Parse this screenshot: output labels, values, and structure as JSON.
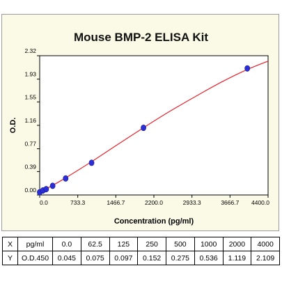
{
  "chart_data": {
    "type": "scatter",
    "title": "Mouse BMP-2 ELISA Kit",
    "xlabel": "Concentration (pg/ml)",
    "ylabel": "O.D.",
    "xlim": [
      0,
      4400
    ],
    "ylim": [
      0,
      2.32
    ],
    "x_ticks": [
      "0.0",
      "733.3",
      "1466.7",
      "2200.0",
      "2933.3",
      "3666.7",
      "4400.0"
    ],
    "x_tick_values": [
      0,
      733.3,
      1466.7,
      2200.0,
      2933.3,
      3666.7,
      4400.0
    ],
    "y_ticks": [
      "0.00",
      "0.39",
      "0.77",
      "1.16",
      "1.55",
      "1.93",
      "2.32"
    ],
    "y_tick_values": [
      0,
      0.39,
      0.77,
      1.16,
      1.55,
      1.93,
      2.32
    ],
    "points": [
      {
        "x": 0,
        "y": 0.045
      },
      {
        "x": 62.5,
        "y": 0.075
      },
      {
        "x": 125,
        "y": 0.097
      },
      {
        "x": 250,
        "y": 0.152
      },
      {
        "x": 500,
        "y": 0.275
      },
      {
        "x": 1000,
        "y": 0.536
      },
      {
        "x": 2000,
        "y": 1.119
      },
      {
        "x": 4000,
        "y": 2.109
      }
    ],
    "curve": [
      {
        "x": 0,
        "y": 0.045
      },
      {
        "x": 250,
        "y": 0.16
      },
      {
        "x": 500,
        "y": 0.285
      },
      {
        "x": 1000,
        "y": 0.555
      },
      {
        "x": 1500,
        "y": 0.84
      },
      {
        "x": 2000,
        "y": 1.12
      },
      {
        "x": 2500,
        "y": 1.39
      },
      {
        "x": 3000,
        "y": 1.64
      },
      {
        "x": 3500,
        "y": 1.88
      },
      {
        "x": 4000,
        "y": 2.09
      },
      {
        "x": 4400,
        "y": 2.23
      }
    ],
    "colors": {
      "curve": "#e8202a",
      "point": "#2b2fd8",
      "background": "#fafae6"
    }
  },
  "table": {
    "rows": [
      [
        "X",
        "pg/ml",
        "0.0",
        "62.5",
        "125",
        "250",
        "500",
        "1000",
        "2000",
        "4000"
      ],
      [
        "Y",
        "O.D.450",
        "0.045",
        "0.075",
        "0.097",
        "0.152",
        "0.275",
        "0.536",
        "1.119",
        "2.109"
      ]
    ]
  }
}
